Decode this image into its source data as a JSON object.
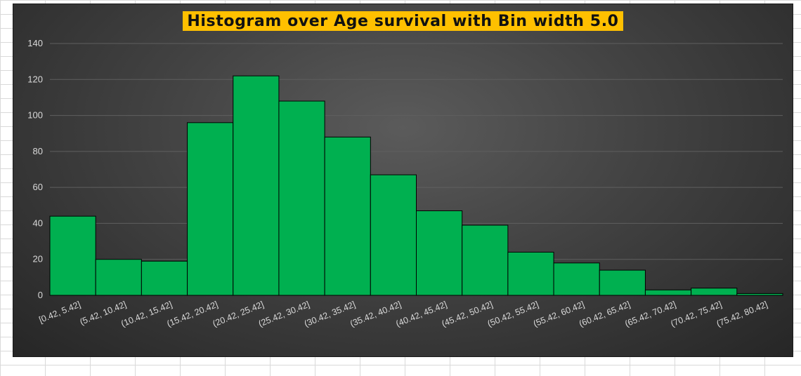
{
  "chart_data": {
    "type": "bar",
    "title": "Histogram over Age survival with Bin width 5.0",
    "xlabel": "",
    "ylabel": "",
    "categories": [
      "[0.42, 5.42]",
      "(5.42, 10.42]",
      "(10.42, 15.42]",
      "(15.42, 20.42]",
      "(20.42, 25.42]",
      "(25.42, 30.42]",
      "(30.42, 35.42]",
      "(35.42, 40.42]",
      "(40.42, 45.42]",
      "(45.42, 50.42]",
      "(50.42, 55.42]",
      "(55.42, 60.42]",
      "(60.42, 65.42]",
      "(65.42, 70.42]",
      "(70.42, 75.42]",
      "(75.42, 80.42]"
    ],
    "values": [
      44,
      20,
      19,
      96,
      122,
      108,
      88,
      67,
      47,
      39,
      24,
      18,
      14,
      3,
      4,
      1
    ],
    "ylim": [
      0,
      140
    ],
    "yticks": [
      "0",
      "20",
      "40",
      "60",
      "80",
      "100",
      "120",
      "140"
    ],
    "grid": true,
    "legend": "none",
    "colors": {
      "bar": "#00b050",
      "bar_edge": "#000000",
      "title_bg": "#ffc000",
      "background": "#404040",
      "gridline": "#5f5f5f"
    }
  }
}
